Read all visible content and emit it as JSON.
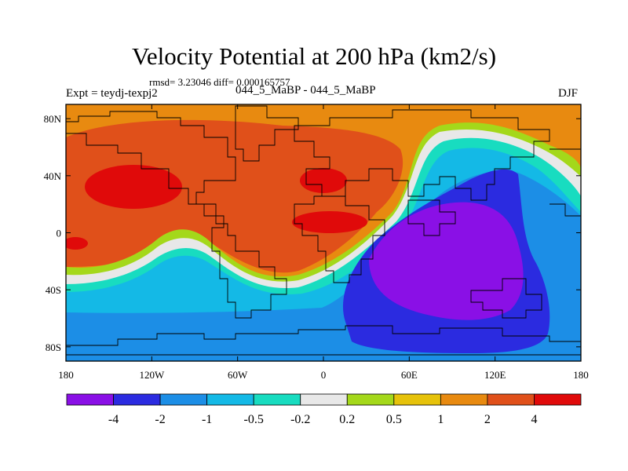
{
  "title": "Velocity Potential at 200 hPa (km2/s)",
  "stats_line": "rmsd= 3.23046 diff= 0.000165757",
  "left_label": "Expt = teydj-texpj2",
  "center_label": "044_5_MaBP - 044_5_MaBP",
  "right_label": "DJF",
  "chart_data": {
    "type": "heatmap",
    "title": "Velocity Potential at 200 hPa (km2/s)",
    "xlabel": "",
    "ylabel": "",
    "xlim": [
      -180,
      180
    ],
    "ylim": [
      -90,
      90
    ],
    "x_ticks": [
      {
        "value": -180,
        "label": "180"
      },
      {
        "value": -120,
        "label": "120W"
      },
      {
        "value": -60,
        "label": "60W"
      },
      {
        "value": 0,
        "label": "0"
      },
      {
        "value": 60,
        "label": "60E"
      },
      {
        "value": 120,
        "label": "120E"
      },
      {
        "value": 180,
        "label": "180"
      }
    ],
    "y_ticks": [
      {
        "value": 80,
        "label": "80N"
      },
      {
        "value": 40,
        "label": "40N"
      },
      {
        "value": 0,
        "label": "0"
      },
      {
        "value": -40,
        "label": "40S"
      },
      {
        "value": -80,
        "label": "80S"
      }
    ],
    "levels": [
      -4,
      -2,
      -1,
      -0.5,
      -0.2,
      0.2,
      0.5,
      1,
      2,
      4
    ],
    "level_labels": [
      "-4",
      "-2",
      "-1",
      "-0.5",
      "-0.2",
      "0.2",
      "0.5",
      "1",
      "2",
      "4"
    ],
    "colors": [
      "#8a10e6",
      "#2b2be0",
      "#1c8ee6",
      "#14b9e6",
      "#18dcc0",
      "#e8e8e8",
      "#a4d81a",
      "#e6c20a",
      "#e88a10",
      "#e0501a",
      "#e00a0a"
    ],
    "colorbar": "horizontal, bottom"
  }
}
